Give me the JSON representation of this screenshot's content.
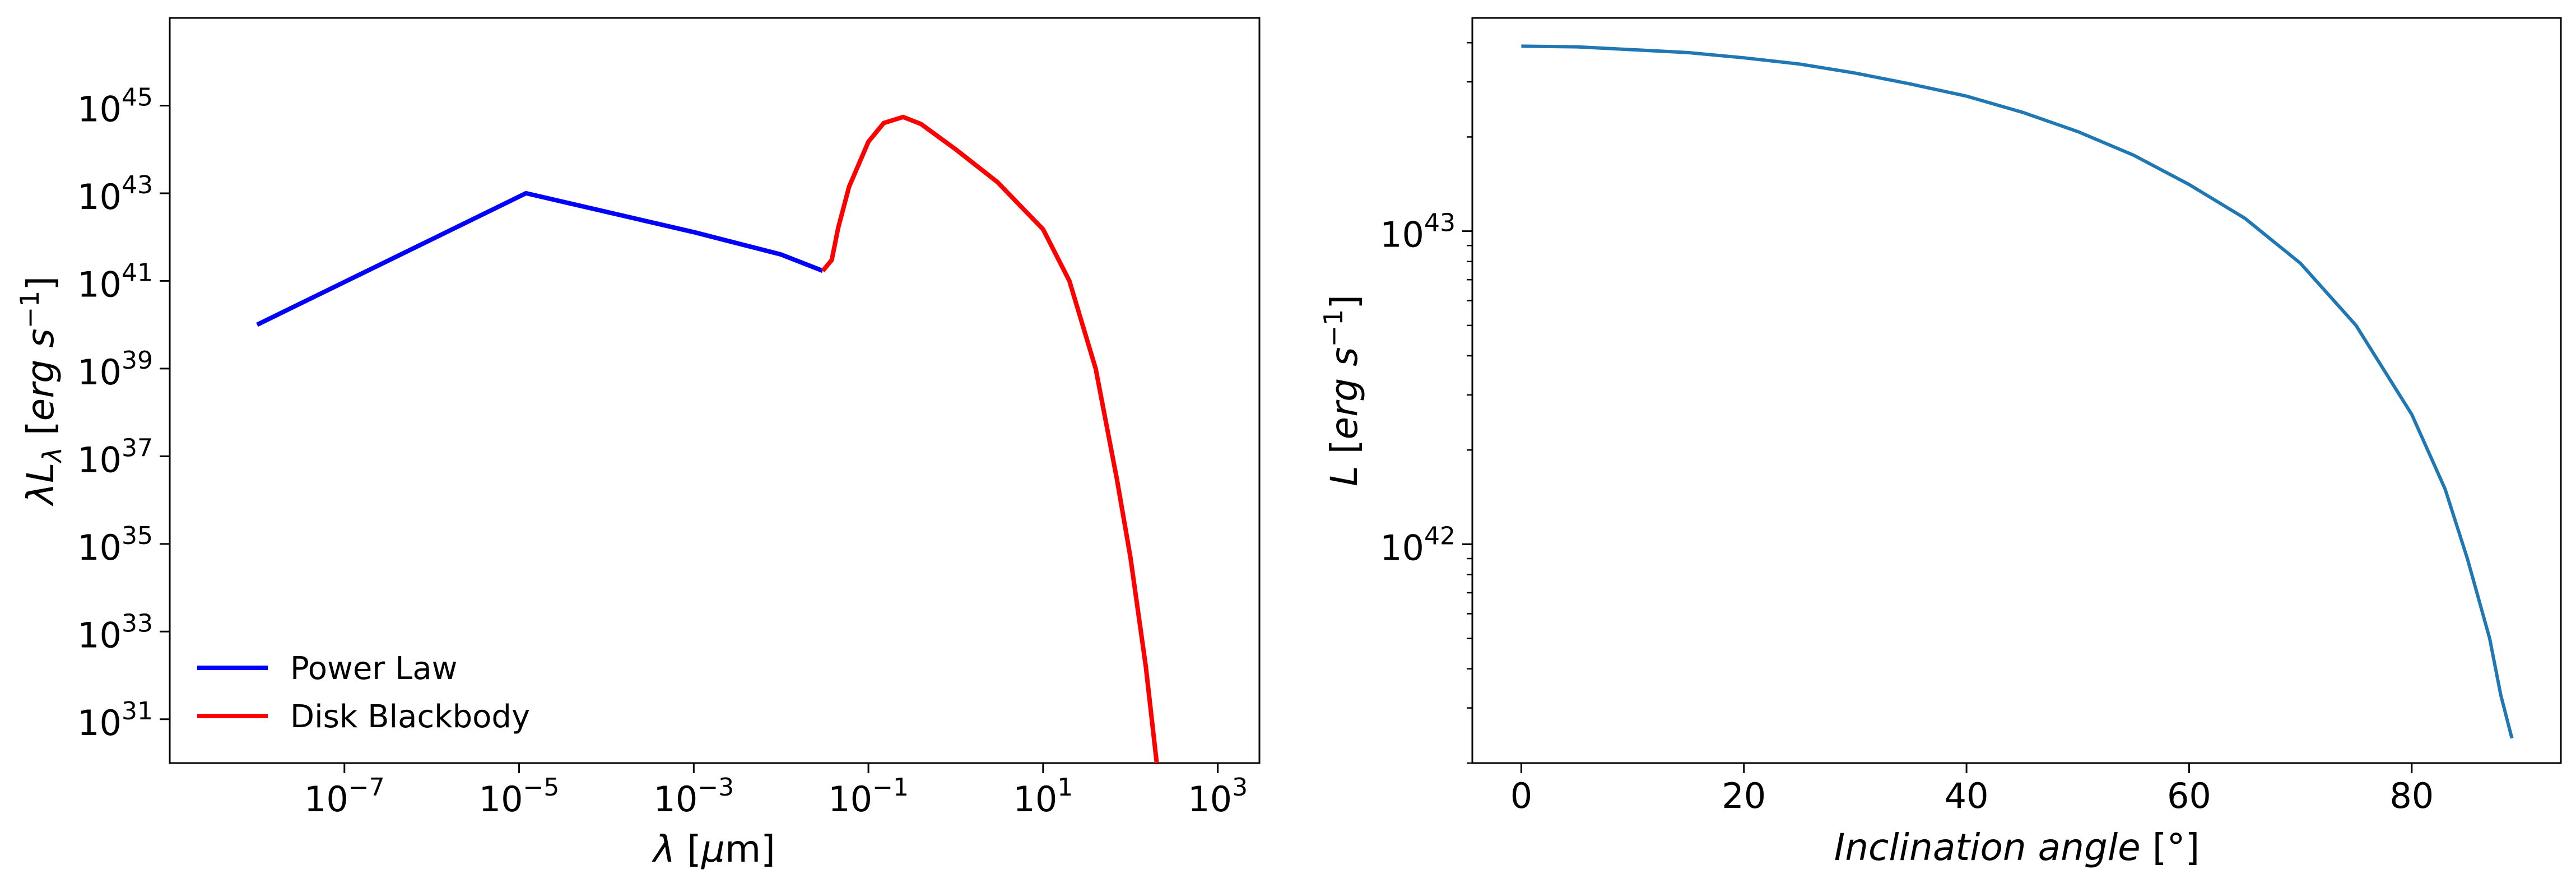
{
  "chart_data": [
    {
      "type": "line",
      "panel": "left",
      "title": "",
      "xlabel": "λ  [μm]",
      "ylabel": "λL_λ [erg s^-1]",
      "xscale": "log",
      "yscale": "log",
      "xlim": [
        1e-09,
        3000
      ],
      "ylim": [
        1e+30,
        1e+47
      ],
      "xticks": [
        {
          "base": "10",
          "exp": "−7",
          "value": 1e-07
        },
        {
          "base": "10",
          "exp": "−5",
          "value": 1e-05
        },
        {
          "base": "10",
          "exp": "−3",
          "value": 0.001
        },
        {
          "base": "10",
          "exp": "−1",
          "value": 0.1
        },
        {
          "base": "10",
          "exp": "1",
          "value": 10
        },
        {
          "base": "10",
          "exp": "3",
          "value": 1000
        }
      ],
      "yticks": [
        {
          "base": "10",
          "exp": "31",
          "value": 1e+31
        },
        {
          "base": "10",
          "exp": "33",
          "value": 1e+33
        },
        {
          "base": "10",
          "exp": "35",
          "value": 1e+35
        },
        {
          "base": "10",
          "exp": "37",
          "value": 1e+37
        },
        {
          "base": "10",
          "exp": "39",
          "value": 1e+39
        },
        {
          "base": "10",
          "exp": "41",
          "value": 1e+41
        },
        {
          "base": "10",
          "exp": "43",
          "value": 1e+43
        },
        {
          "base": "10",
          "exp": "45",
          "value": 1e+45
        }
      ],
      "legend_position": "lower-left",
      "series": [
        {
          "name": "Power Law",
          "color": "#0000ff",
          "points": [
            [
              1e-08,
              1e+40
            ],
            [
              1.2e-05,
              1e+43
            ],
            [
              0.001,
              1.3e+42
            ],
            [
              0.01,
              4e+41
            ],
            [
              0.03,
              1.7e+41
            ]
          ]
        },
        {
          "name": "Disk Blackbody",
          "color": "#ff0000",
          "points": [
            [
              0.03,
              1.7e+41
            ],
            [
              0.038,
              3e+41
            ],
            [
              0.045,
              1.6e+42
            ],
            [
              0.06,
              1.4e+43
            ],
            [
              0.1,
              1.5e+44
            ],
            [
              0.15,
              4e+44
            ],
            [
              0.25,
              5.5e+44
            ],
            [
              0.4,
              3.8e+44
            ],
            [
              1,
              1e+44
            ],
            [
              3,
              1.8e+43
            ],
            [
              10,
              1.5e+42
            ],
            [
              20,
              1e+41
            ],
            [
              40,
              1e+39
            ],
            [
              70,
              3e+36
            ],
            [
              100,
              5e+34
            ],
            [
              150,
              1.6e+32
            ],
            [
              200,
              1e+30
            ]
          ]
        }
      ]
    },
    {
      "type": "line",
      "panel": "right",
      "title": "",
      "xlabel": "Inclination angle [°]",
      "ylabel": "L [erg s^-1]",
      "xscale": "linear",
      "yscale": "log",
      "xlim": [
        -4.4,
        93.4
      ],
      "ylim": [
        2e+41,
        4.8e+43
      ],
      "xticks": [
        0,
        20,
        40,
        60,
        80
      ],
      "yticks": [
        {
          "base": "10",
          "exp": "42",
          "value": 1e+42
        },
        {
          "base": "10",
          "exp": "43",
          "value": 1e+43
        }
      ],
      "series": [
        {
          "name": "",
          "color": "#1f77b4",
          "x": [
            0,
            5,
            10,
            15,
            20,
            25,
            30,
            35,
            40,
            45,
            50,
            55,
            60,
            65,
            70,
            75,
            80,
            83,
            85,
            87,
            88,
            89
          ],
          "y": [
            3.9e+43,
            3.88e+43,
            3.8e+43,
            3.72e+43,
            3.58e+43,
            3.42e+43,
            3.2e+43,
            2.95e+43,
            2.7e+43,
            2.4e+43,
            2.08e+43,
            1.75e+43,
            1.41e+43,
            1.1e+43,
            7.9e+42,
            5e+42,
            2.6e+42,
            1.5e+42,
            9e+41,
            5e+41,
            3.3e+41,
            2.4e+41
          ]
        }
      ]
    }
  ]
}
